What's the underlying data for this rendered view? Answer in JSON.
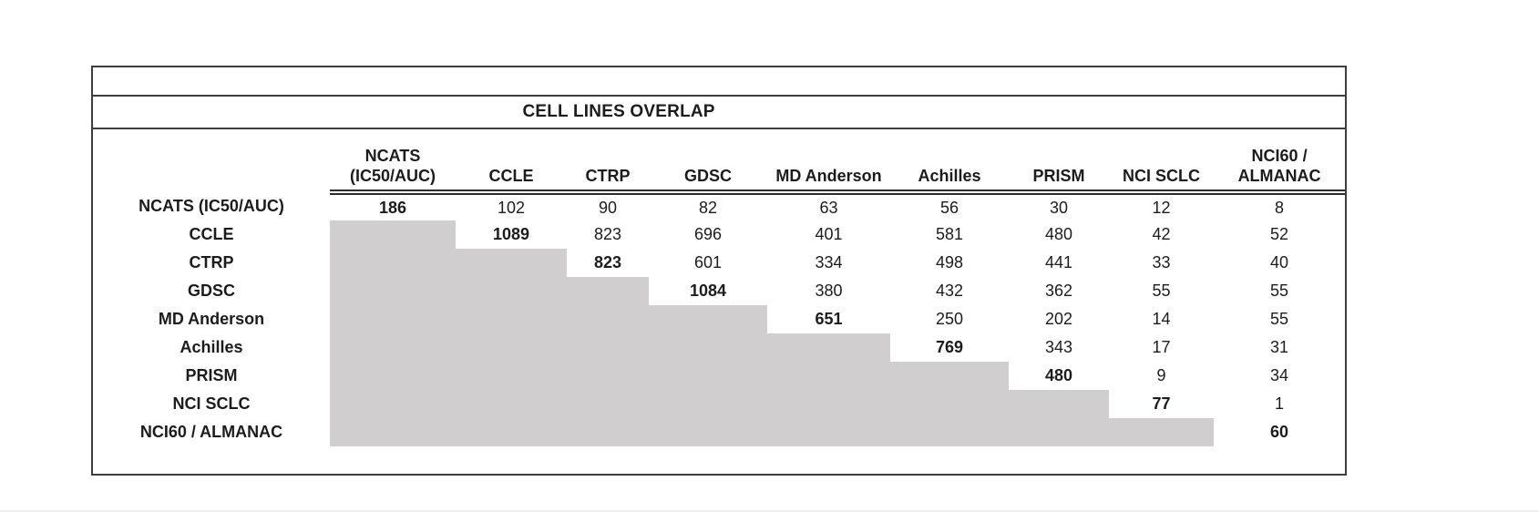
{
  "title_band": {
    "label": "CELL LINES OVERLAP"
  },
  "chart_data": {
    "type": "table",
    "title": "CELL LINES OVERLAP",
    "column_headers": [
      "NCATS (IC50/AUC)",
      "CCLE",
      "CTRP",
      "GDSC",
      "MD Anderson",
      "Achilles",
      "PRISM",
      "NCI SCLC",
      "NCI60 / ALMANAC"
    ],
    "column_header_lines": [
      [
        "NCATS",
        "(IC50/AUC)"
      ],
      [
        "CCLE"
      ],
      [
        "CTRP"
      ],
      [
        "GDSC"
      ],
      [
        "MD Anderson"
      ],
      [
        "Achilles"
      ],
      [
        "PRISM"
      ],
      [
        "NCI SCLC"
      ],
      [
        "NCI60 /",
        "ALMANAC"
      ]
    ],
    "row_labels": [
      "NCATS (IC50/AUC)",
      "CCLE",
      "CTRP",
      "GDSC",
      "MD Anderson",
      "Achilles",
      "PRISM",
      "NCI SCLC",
      "NCI60 / ALMANAC"
    ],
    "matrix": [
      [
        186,
        102,
        90,
        82,
        63,
        56,
        30,
        12,
        8
      ],
      [
        null,
        1089,
        823,
        696,
        401,
        581,
        480,
        42,
        52
      ],
      [
        null,
        null,
        823,
        601,
        334,
        498,
        441,
        33,
        40
      ],
      [
        null,
        null,
        null,
        1084,
        380,
        432,
        362,
        55,
        55
      ],
      [
        null,
        null,
        null,
        null,
        651,
        250,
        202,
        14,
        55
      ],
      [
        null,
        null,
        null,
        null,
        null,
        769,
        343,
        17,
        31
      ],
      [
        null,
        null,
        null,
        null,
        null,
        null,
        480,
        9,
        34
      ],
      [
        null,
        null,
        null,
        null,
        null,
        null,
        null,
        77,
        1
      ],
      [
        null,
        null,
        null,
        null,
        null,
        null,
        null,
        null,
        60
      ]
    ],
    "diagonal_bold": true,
    "lower_triangle_shaded": true,
    "shaded_color": "#d0cece",
    "legend_position": "none",
    "grid": "outer-box with rules above/below title and double rule under headers"
  },
  "colors": {
    "shaded_cell": "#d0cece",
    "border": "#3f3f3f",
    "text": "#1c1c1c",
    "background": "#ffffff"
  }
}
